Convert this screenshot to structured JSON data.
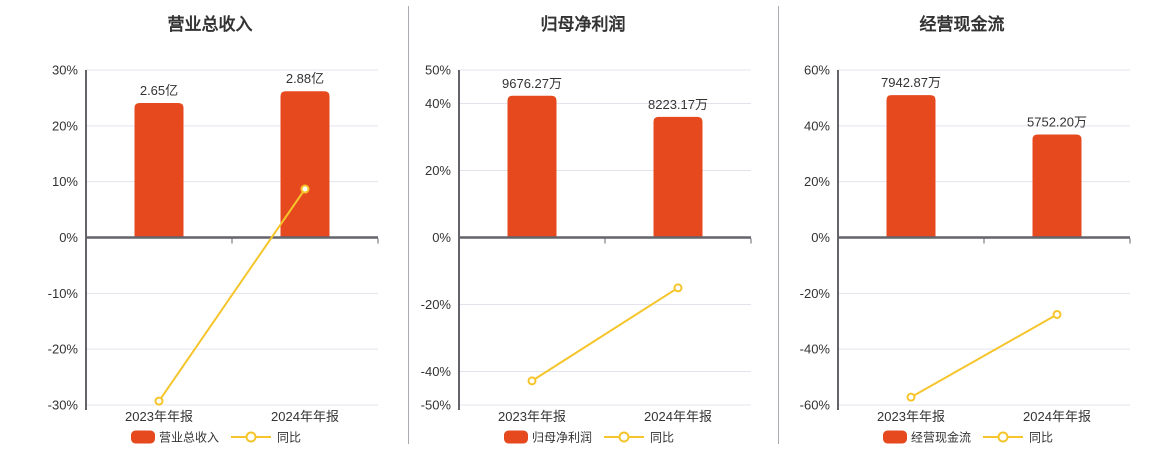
{
  "page": {
    "background": "#ffffff"
  },
  "colors": {
    "bar": "#e6491e",
    "line": "#f5c52b",
    "marker_fill": "#ffffff",
    "grid": "#e3e3ed",
    "axis": "#63646b",
    "text": "#333333",
    "title": "#333333",
    "divider": "#aaabb0"
  },
  "chart_data": [
    {
      "type": "bar+line",
      "title": "营业总收入",
      "categories": [
        "2023年年报",
        "2024年年报"
      ],
      "bar_series": {
        "name": "营业总收入",
        "value_labels": [
          "2.65亿",
          "2.88亿"
        ],
        "plotted_axis_pct": [
          24.1,
          26.2
        ]
      },
      "line_series": {
        "name": "同比",
        "values_pct": [
          -29.3,
          8.68
        ]
      },
      "ylim": [
        -30,
        30
      ],
      "yticks": [
        {
          "label": "30%",
          "value": 30
        },
        {
          "label": "20%",
          "value": 20
        },
        {
          "label": "10%",
          "value": 10
        },
        {
          "label": "0%",
          "value": 0
        },
        {
          "label": "-10%",
          "value": -10
        },
        {
          "label": "-20%",
          "value": -20
        },
        {
          "label": "-30%",
          "value": -30
        }
      ],
      "grid": true,
      "legend_position": "bottom"
    },
    {
      "type": "bar+line",
      "title": "归母净利润",
      "categories": [
        "2023年年报",
        "2024年年报"
      ],
      "bar_series": {
        "name": "归母净利润",
        "value_labels": [
          "9676.27万",
          "8223.17万"
        ],
        "plotted_axis_pct": [
          42.3,
          36.0
        ]
      },
      "line_series": {
        "name": "同比",
        "values_pct": [
          -42.8,
          -15.02
        ]
      },
      "ylim": [
        -50,
        50
      ],
      "yticks": [
        {
          "label": "50%",
          "value": 50
        },
        {
          "label": "40%",
          "value": 40
        },
        {
          "label": "20%",
          "value": 20
        },
        {
          "label": "0%",
          "value": 0
        },
        {
          "label": "-20%",
          "value": -20
        },
        {
          "label": "-40%",
          "value": -40
        },
        {
          "label": "-50%",
          "value": -50
        }
      ],
      "grid": true,
      "legend_position": "bottom"
    },
    {
      "type": "bar+line",
      "title": "经营现金流",
      "categories": [
        "2023年年报",
        "2024年年报"
      ],
      "bar_series": {
        "name": "经营现金流",
        "value_labels": [
          "7942.87万",
          "5752.20万"
        ],
        "plotted_axis_pct": [
          51.0,
          36.9
        ]
      },
      "line_series": {
        "name": "同比",
        "values_pct": [
          -57.2,
          -27.58
        ]
      },
      "ylim": [
        -60,
        60
      ],
      "yticks": [
        {
          "label": "60%",
          "value": 60
        },
        {
          "label": "40%",
          "value": 40
        },
        {
          "label": "20%",
          "value": 20
        },
        {
          "label": "0%",
          "value": 0
        },
        {
          "label": "-20%",
          "value": -20
        },
        {
          "label": "-40%",
          "value": -40
        },
        {
          "label": "-60%",
          "value": -60
        }
      ],
      "grid": true,
      "legend_position": "bottom"
    }
  ]
}
